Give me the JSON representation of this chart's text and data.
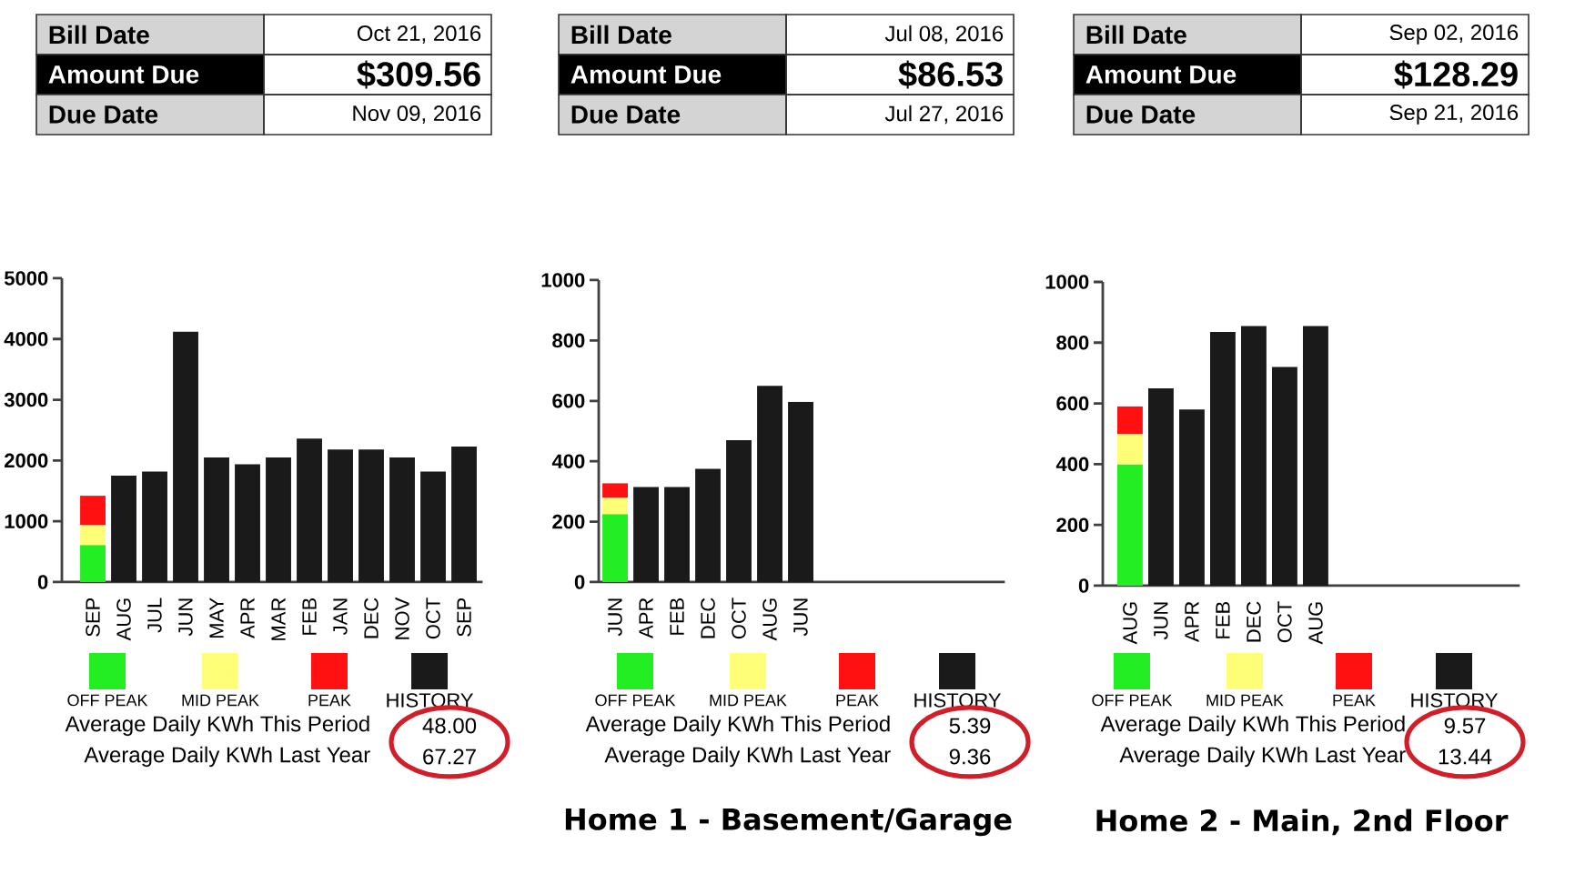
{
  "chart_data": [
    {
      "type": "bar",
      "stacked": true,
      "legend": "bottom",
      "ylim": [
        0,
        5000
      ],
      "yticks": [
        0,
        1000,
        2000,
        3000,
        4000,
        5000
      ],
      "categories": [
        "SEP",
        "AUG",
        "JUL",
        "JUN",
        "MAY",
        "APR",
        "MAR",
        "FEB",
        "JAN",
        "DEC",
        "NOV",
        "OCT",
        "SEP"
      ],
      "series": [
        {
          "name": "OFF PEAK",
          "color": "#22ee22",
          "values": [
            610,
            null,
            null,
            null,
            null,
            null,
            null,
            null,
            null,
            null,
            null,
            null,
            null
          ]
        },
        {
          "name": "MID PEAK",
          "color": "#ffff77",
          "values": [
            330,
            null,
            null,
            null,
            null,
            null,
            null,
            null,
            null,
            null,
            null,
            null,
            null
          ]
        },
        {
          "name": "PEAK",
          "color": "#ff1111",
          "values": [
            480,
            null,
            null,
            null,
            null,
            null,
            null,
            null,
            null,
            null,
            null,
            null,
            null
          ]
        },
        {
          "name": "HISTORY",
          "color": "#1a1a1a",
          "values": [
            null,
            1750,
            1820,
            4120,
            2050,
            1940,
            2050,
            2360,
            2180,
            2180,
            2050,
            1820,
            2230
          ]
        }
      ],
      "annotations": [
        "Bill Date",
        "Oct 21, 2016",
        "Amount Due",
        "$309.56",
        "Due Date",
        "Nov 09, 2016",
        "Average Daily KWh This Period",
        "48.00",
        "Average Daily KWh Last Year",
        "67.27"
      ]
    },
    {
      "type": "bar",
      "stacked": true,
      "legend": "bottom",
      "title": "Home 1 - Basement/Garage",
      "ylim": [
        0,
        1000
      ],
      "yticks": [
        0,
        200,
        400,
        600,
        800,
        1000
      ],
      "categories": [
        "JUN",
        "APR",
        "FEB",
        "DEC",
        "OCT",
        "AUG",
        "JUN"
      ],
      "series": [
        {
          "name": "OFF PEAK",
          "color": "#22ee22",
          "values": [
            225,
            null,
            null,
            null,
            null,
            null,
            null
          ]
        },
        {
          "name": "MID PEAK",
          "color": "#ffff77",
          "values": [
            55,
            null,
            null,
            null,
            null,
            null,
            null
          ]
        },
        {
          "name": "PEAK",
          "color": "#ff1111",
          "values": [
            47,
            null,
            null,
            null,
            null,
            null,
            null
          ]
        },
        {
          "name": "HISTORY",
          "color": "#1a1a1a",
          "values": [
            null,
            315,
            315,
            375,
            470,
            650,
            597
          ]
        }
      ],
      "annotations": [
        "Bill Date",
        "Jul 08, 2016",
        "Amount Due",
        "$86.53",
        "Due Date",
        "Jul 27, 2016",
        "Average Daily KWh This Period",
        "5.39",
        "Average Daily KWh Last Year",
        "9.36"
      ]
    },
    {
      "type": "bar",
      "stacked": true,
      "legend": "bottom",
      "title": "Home 2 - Main, 2nd Floor",
      "ylim": [
        0,
        1000
      ],
      "yticks": [
        0,
        200,
        400,
        600,
        800,
        1000
      ],
      "categories": [
        "AUG",
        "JUN",
        "APR",
        "FEB",
        "DEC",
        "OCT",
        "AUG"
      ],
      "series": [
        {
          "name": "OFF PEAK",
          "color": "#22ee22",
          "values": [
            400,
            null,
            null,
            null,
            null,
            null,
            null
          ]
        },
        {
          "name": "MID PEAK",
          "color": "#ffff77",
          "values": [
            100,
            null,
            null,
            null,
            null,
            null,
            null
          ]
        },
        {
          "name": "PEAK",
          "color": "#ff1111",
          "values": [
            90,
            null,
            null,
            null,
            null,
            null,
            null
          ]
        },
        {
          "name": "HISTORY",
          "color": "#1a1a1a",
          "values": [
            null,
            650,
            580,
            835,
            855,
            720,
            855
          ]
        }
      ],
      "annotations": [
        "Bill Date",
        "Sep 02, 2016",
        "Amount Due",
        "$128.29",
        "Due Date",
        "Sep 21, 2016",
        "Average Daily KWh This Period",
        "9.57",
        "Average Daily KWh Last Year",
        "13.44"
      ]
    }
  ]
}
